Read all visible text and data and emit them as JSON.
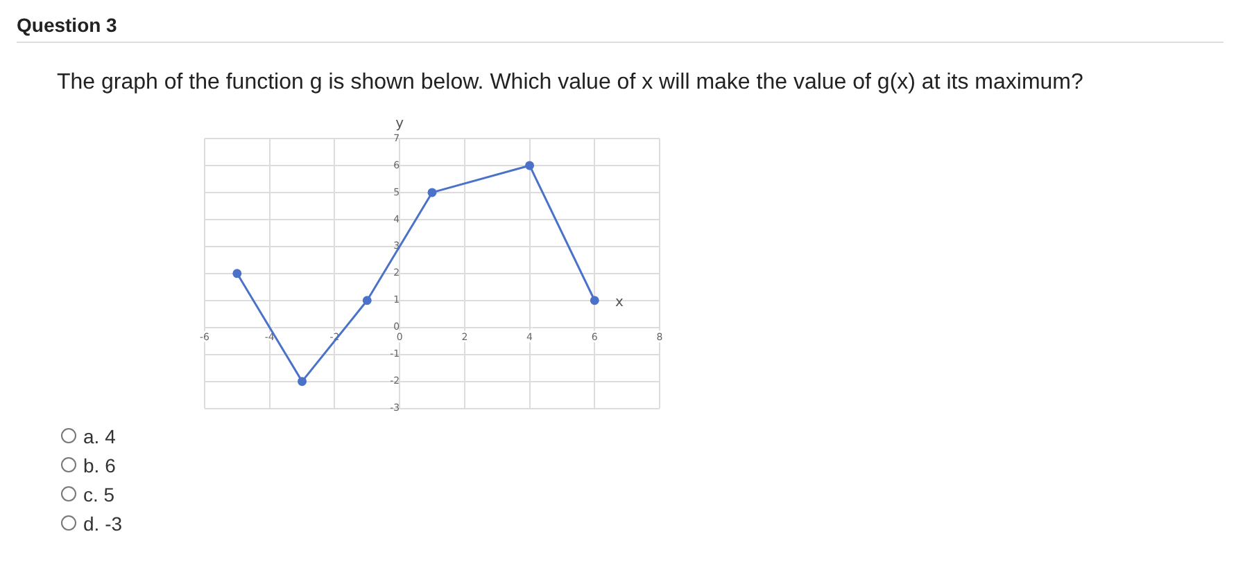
{
  "chart_data": {
    "type": "line",
    "title": "Question 3",
    "subtitle": "The graph of the function g is shown below. Which value of x will make the value of  g(x) at its maximum?",
    "xlabel": "x",
    "ylabel": "y",
    "x": [
      -5,
      -3,
      -1,
      1,
      4,
      6
    ],
    "series": [
      {
        "color": "#4a72c9",
        "values": [
          2,
          -2,
          1,
          5,
          6,
          1
        ]
      }
    ],
    "xlim": [
      -6,
      8
    ],
    "xticks": [
      -6,
      -4,
      -2,
      0,
      2,
      4,
      6,
      8
    ],
    "ylim": [
      -3,
      7
    ],
    "yticks": [
      -3,
      -2,
      -1,
      0,
      1,
      2,
      3,
      4,
      5,
      6,
      7
    ],
    "grid": true,
    "marker": "circle",
    "line_style": "solid",
    "annotations": [
      "a. 4",
      "b. 6",
      "c. 5",
      "d. -3"
    ]
  }
}
